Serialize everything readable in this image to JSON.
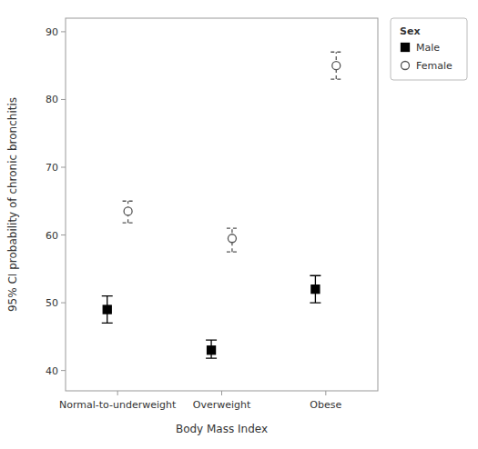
{
  "chart_data": {
    "type": "errorbar",
    "categories": [
      "Normal-to-underweight",
      "Overweight",
      "Obese"
    ],
    "series": [
      {
        "name": "Male",
        "color": "#000000",
        "marker": "square",
        "line_style": "solid",
        "values": [
          49.0,
          43.0,
          52.0
        ],
        "ci_lower": [
          47.0,
          41.8,
          50.0
        ],
        "ci_upper": [
          51.0,
          44.5,
          54.0
        ]
      },
      {
        "name": "Female",
        "color": "#555555",
        "marker": "circle",
        "line_style": "dashed",
        "values": [
          63.5,
          59.5,
          85.0
        ],
        "ci_lower": [
          61.8,
          57.5,
          83.0
        ],
        "ci_upper": [
          65.0,
          61.0,
          87.0
        ]
      }
    ],
    "xlabel": "Body Mass Index",
    "ylabel": "95% CI probability of chronic bronchitis",
    "ylim": [
      37,
      92
    ],
    "yticks": [
      40,
      50,
      60,
      70,
      80,
      90
    ],
    "grid": false,
    "legend": "right",
    "legend_title": "Sex"
  }
}
